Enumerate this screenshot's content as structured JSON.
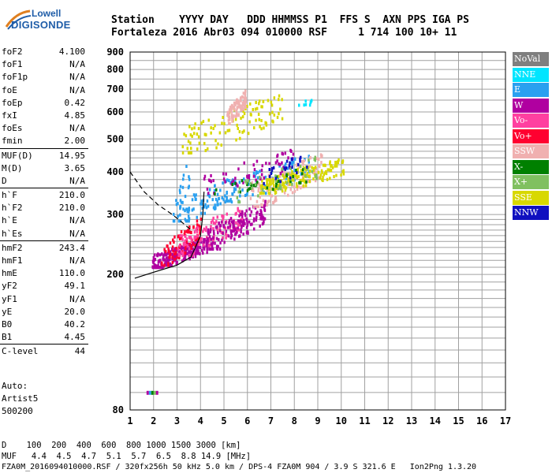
{
  "logo": {
    "line1": "Lowell",
    "line2": "DIGISONDE"
  },
  "header": {
    "row1": "Station    YYYY DAY   DDD HHMMSS P1  FFS S  AXN PPS IGA PS",
    "row2": "Fortaleza 2016 Abr03 094 010000 RSF     1 714 100 10+ 11"
  },
  "params": [
    {
      "label": "foF2",
      "value": "4.100"
    },
    {
      "label": "foF1",
      "value": "N/A"
    },
    {
      "label": "foF1p",
      "value": "N/A"
    },
    {
      "label": "foE",
      "value": "N/A"
    },
    {
      "label": "foEp",
      "value": "0.42"
    },
    {
      "label": "fxI",
      "value": "4.85"
    },
    {
      "label": "foEs",
      "value": "N/A"
    },
    {
      "label": "fmin",
      "value": "2.00"
    },
    {
      "label": "MUF(D)",
      "value": "14.95"
    },
    {
      "label": "M(D)",
      "value": "3.65"
    },
    {
      "label": "D",
      "value": "N/A"
    },
    {
      "label": "h`F",
      "value": "210.0"
    },
    {
      "label": "h`F2",
      "value": "210.0"
    },
    {
      "label": "h`E",
      "value": "N/A"
    },
    {
      "label": "h`Es",
      "value": "N/A"
    },
    {
      "label": "hmF2",
      "value": "243.4"
    },
    {
      "label": "hmF1",
      "value": "N/A"
    },
    {
      "label": "hmE",
      "value": "110.0"
    },
    {
      "label": "yF2",
      "value": "49.1"
    },
    {
      "label": "yF1",
      "value": "N/A"
    },
    {
      "label": "yE",
      "value": "20.0"
    },
    {
      "label": "B0",
      "value": "40.2"
    },
    {
      "label": "B1",
      "value": "4.45"
    },
    {
      "label": "C-level",
      "value": "44"
    }
  ],
  "auto": {
    "line1": "Auto:",
    "line2": "Artist5",
    "line3": "500200"
  },
  "legend": [
    {
      "label": "NoVal",
      "color": "#7f7f7f"
    },
    {
      "label": "NNE",
      "color": "#00e5ff"
    },
    {
      "label": "E",
      "color": "#2aa0f0"
    },
    {
      "label": "W",
      "color": "#b000a0"
    },
    {
      "label": "Vo-",
      "color": "#ff40a0"
    },
    {
      "label": "Vo+",
      "color": "#ff0030"
    },
    {
      "label": "SSW",
      "color": "#f0b0b0"
    },
    {
      "label": "X-",
      "color": "#008000"
    },
    {
      "label": "X+",
      "color": "#80c060"
    },
    {
      "label": "SSE",
      "color": "#d8d800"
    },
    {
      "label": "NNW",
      "color": "#1010c0"
    }
  ],
  "footer": {
    "line1": "D    100  200  400  600  800 1000 1500 3000 [km]",
    "line2": "MUF   4.4  4.5  4.7  5.1  5.7  6.5  8.8 14.9 [MHz]",
    "file": "FZA0M_2016094010000.RSF / 320fx256h 50 kHz 5.0 km / DPS-4 FZA0M 904 / 3.9 S 321.6 E   Ion2Png 1.3.20"
  },
  "chart_data": {
    "type": "scatter",
    "xlim": [
      1,
      17
    ],
    "ylim": [
      80,
      900
    ],
    "x_ticks": [
      "1",
      "2",
      "3",
      "4",
      "5",
      "6",
      "7",
      "8",
      "9",
      "10",
      "11",
      "12",
      "13",
      "14",
      "15",
      "16",
      "17"
    ],
    "y_ticks": [
      {
        "v": 80,
        "label": "80"
      },
      {
        "v": 200,
        "label": "200"
      },
      {
        "v": 300,
        "label": "300"
      },
      {
        "v": 400,
        "label": "400"
      },
      {
        "v": 500,
        "label": "500"
      },
      {
        "v": 600,
        "label": "600"
      },
      {
        "v": 700,
        "label": "700"
      },
      {
        "v": 800,
        "label": "800"
      },
      {
        "v": 900,
        "label": "900"
      }
    ],
    "grid": true,
    "y_scale": "log",
    "clusters": [
      {
        "color": "#b000a0",
        "x": [
          1.9,
          4.3
        ],
        "y": [
          212,
          262
        ],
        "n": 220
      },
      {
        "color": "#ff0030",
        "x": [
          2.3,
          4.0
        ],
        "y": [
          215,
          300
        ],
        "n": 90
      },
      {
        "color": "#ff40a0",
        "x": [
          3.0,
          5.8
        ],
        "y": [
          230,
          330
        ],
        "n": 110
      },
      {
        "color": "#b000a0",
        "x": [
          4.2,
          6.8
        ],
        "y": [
          240,
          340
        ],
        "n": 160
      },
      {
        "color": "#2aa0f0",
        "x": [
          3.0,
          5.5
        ],
        "y": [
          290,
          400
        ],
        "n": 90
      },
      {
        "color": "#2aa0f0",
        "x": [
          5.0,
          8.6
        ],
        "y": [
          330,
          470
        ],
        "n": 90
      },
      {
        "color": "#f0b0b0",
        "x": [
          6.0,
          9.2
        ],
        "y": [
          320,
          470
        ],
        "n": 120
      },
      {
        "color": "#d8d800",
        "x": [
          6.5,
          10.1
        ],
        "y": [
          350,
          450
        ],
        "n": 160
      },
      {
        "color": "#d8d800",
        "x": [
          3.2,
          7.5
        ],
        "y": [
          460,
          700
        ],
        "n": 110
      },
      {
        "color": "#f0b0b0",
        "x": [
          5.1,
          5.9
        ],
        "y": [
          560,
          710
        ],
        "n": 90
      },
      {
        "color": "#b000a0",
        "x": [
          4.0,
          8.0
        ],
        "y": [
          350,
          480
        ],
        "n": 60
      },
      {
        "color": "#008000",
        "x": [
          4.5,
          8.5
        ],
        "y": [
          340,
          420
        ],
        "n": 35
      },
      {
        "color": "#80c060",
        "x": [
          5.5,
          9.0
        ],
        "y": [
          330,
          460
        ],
        "n": 40
      },
      {
        "color": "#1010c0",
        "x": [
          6.5,
          8.5
        ],
        "y": [
          360,
          470
        ],
        "n": 25
      },
      {
        "color": "#00e5ff",
        "x": [
          8.0,
          9.1
        ],
        "y": [
          610,
          690
        ],
        "n": 8
      },
      {
        "color": "#2aa0f0",
        "x": [
          2.8,
          3.5
        ],
        "y": [
          290,
          470
        ],
        "n": 20
      }
    ],
    "small_points": [
      {
        "x": 1.7,
        "y": 91,
        "color": "#b000a0"
      },
      {
        "x": 1.8,
        "y": 91,
        "color": "#2aa0f0"
      },
      {
        "x": 1.9,
        "y": 91,
        "color": "#008000"
      },
      {
        "x": 2.0,
        "y": 91,
        "color": "#80c060"
      },
      {
        "x": 2.1,
        "y": 91,
        "color": "#b000a0"
      }
    ],
    "profile_solid": [
      [
        1.2,
        195
      ],
      [
        2.0,
        203
      ],
      [
        3.0,
        213
      ],
      [
        3.6,
        225
      ],
      [
        4.0,
        260
      ],
      [
        4.1,
        300
      ],
      [
        4.15,
        350
      ]
    ],
    "profile_dashed": [
      [
        1.0,
        400
      ],
      [
        1.6,
        350
      ],
      [
        2.2,
        320
      ],
      [
        2.8,
        300
      ],
      [
        3.2,
        285
      ],
      [
        3.6,
        270
      ]
    ]
  }
}
